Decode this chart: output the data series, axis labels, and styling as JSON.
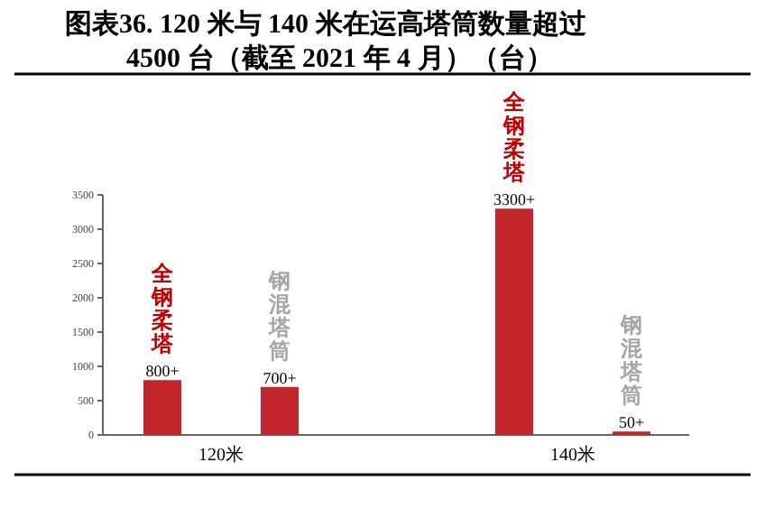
{
  "chart_data": {
    "type": "bar",
    "title": "图表36. 120 米与 140 米在运高塔筒数量超过 4500 台（截至 2021 年 4 月）（台）",
    "categories": [
      null,
      null,
      null,
      null,
      null
    ],
    "values": [
      800,
      700,
      null,
      3300,
      50
    ],
    "value_labels": [
      "800+",
      "700+",
      null,
      "3300+",
      "50+"
    ],
    "color": "#c4262e",
    "ylim": [
      0,
      3500
    ],
    "yticks": [
      0,
      500,
      1000,
      1500,
      2000,
      2500,
      3000,
      3500
    ],
    "grid": false,
    "annotations": [
      "全钢柔塔",
      "钢混塔筒",
      "全钢柔塔",
      "钢混塔筒",
      "120米",
      "140米"
    ]
  }
}
